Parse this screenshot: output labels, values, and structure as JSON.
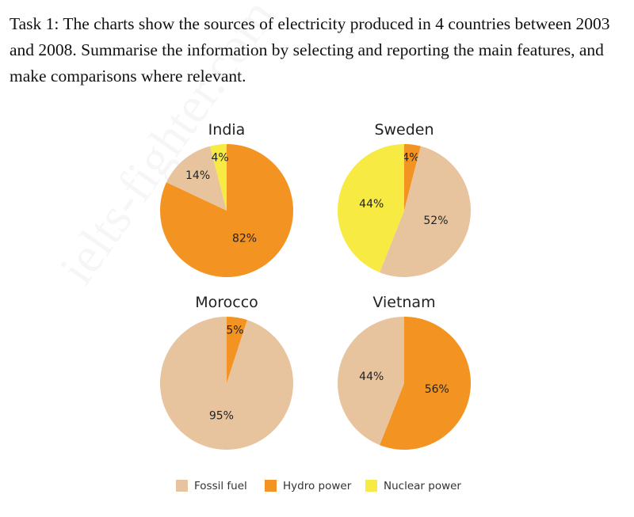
{
  "task_text": "Task 1: The charts show the sources of electricity produced in 4 countries between 2003 and 2008. Summarise the information by selecting and reporting the main features, and make comparisons where relevant.",
  "watermark": "ielts-fighter.com",
  "chart_data": [
    {
      "type": "pie",
      "title": "India",
      "slices": [
        {
          "name": "Hydro power",
          "value": 82,
          "label": "82%"
        },
        {
          "name": "Fossil fuel",
          "value": 14,
          "label": "14%"
        },
        {
          "name": "Nuclear power",
          "value": 4,
          "label": "4%"
        }
      ]
    },
    {
      "type": "pie",
      "title": "Sweden",
      "slices": [
        {
          "name": "Hydro power",
          "value": 4,
          "label": "4%"
        },
        {
          "name": "Fossil fuel",
          "value": 52,
          "label": "52%"
        },
        {
          "name": "Nuclear power",
          "value": 44,
          "label": "44%"
        }
      ]
    },
    {
      "type": "pie",
      "title": "Morocco",
      "slices": [
        {
          "name": "Hydro power",
          "value": 5,
          "label": "5%"
        },
        {
          "name": "Fossil fuel",
          "value": 95,
          "label": "95%"
        }
      ]
    },
    {
      "type": "pie",
      "title": "Vietnam",
      "slices": [
        {
          "name": "Hydro power",
          "value": 56,
          "label": "56%"
        },
        {
          "name": "Fossil fuel",
          "value": 44,
          "label": "44%"
        }
      ]
    }
  ],
  "legend": {
    "placement": "bottom",
    "items": [
      {
        "name": "Fossil fuel",
        "color": "#E8C49E"
      },
      {
        "name": "Hydro power",
        "color": "#F39322"
      },
      {
        "name": "Nuclear power",
        "color": "#F7EB43"
      }
    ]
  }
}
